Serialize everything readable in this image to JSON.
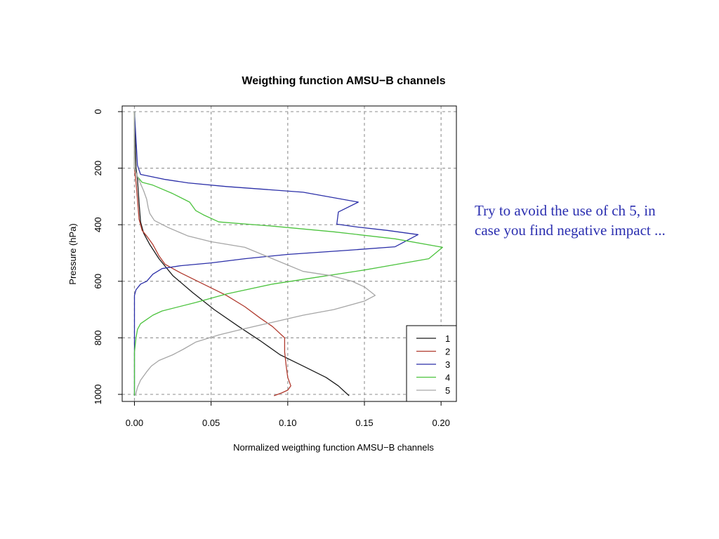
{
  "colors": {
    "note": "#2b2fb0"
  },
  "note_lines": [
    "Try to avoid the use of ch 5, in",
    "case you find negative impact ..."
  ],
  "chart_data": {
    "type": "line",
    "title": "Weigthing function AMSU−B channels",
    "xlabel": "Normalized weigthing function AMSU−B channels",
    "ylabel": "Pressure (hPa)",
    "xlim": [
      -0.008,
      0.21
    ],
    "ylim": [
      1025,
      -20
    ],
    "y_reversed": true,
    "xticks": [
      0.0,
      0.05,
      0.1,
      0.15,
      0.2
    ],
    "xtick_labels": [
      "0.00",
      "0.05",
      "0.10",
      "0.15",
      "0.20"
    ],
    "yticks": [
      0,
      200,
      400,
      600,
      800,
      1000
    ],
    "ytick_labels": [
      "0",
      "200",
      "400",
      "600",
      "800",
      "1000"
    ],
    "grid": true,
    "legend_position": "bottom-right",
    "series": [
      {
        "name": "1",
        "color": "#1a1a1a",
        "points": [
          [
            0.0,
            0
          ],
          [
            0.001,
            200
          ],
          [
            0.002,
            240
          ],
          [
            0.003,
            320
          ],
          [
            0.004,
            390
          ],
          [
            0.006,
            430
          ],
          [
            0.01,
            470
          ],
          [
            0.016,
            520
          ],
          [
            0.025,
            580
          ],
          [
            0.038,
            640
          ],
          [
            0.052,
            700
          ],
          [
            0.068,
            760
          ],
          [
            0.082,
            810
          ],
          [
            0.095,
            860
          ],
          [
            0.11,
            900
          ],
          [
            0.125,
            940
          ],
          [
            0.133,
            970
          ],
          [
            0.138,
            995
          ],
          [
            0.14,
            1005
          ]
        ]
      },
      {
        "name": "2",
        "color": "#b03a2e",
        "points": [
          [
            0.0,
            0
          ],
          [
            0.0,
            200
          ],
          [
            0.001,
            250
          ],
          [
            0.002,
            310
          ],
          [
            0.003,
            380
          ],
          [
            0.005,
            420
          ],
          [
            0.008,
            440
          ],
          [
            0.012,
            470
          ],
          [
            0.016,
            510
          ],
          [
            0.02,
            540
          ],
          [
            0.03,
            570
          ],
          [
            0.045,
            610
          ],
          [
            0.06,
            650
          ],
          [
            0.072,
            690
          ],
          [
            0.082,
            730
          ],
          [
            0.09,
            760
          ],
          [
            0.094,
            780
          ],
          [
            0.098,
            800
          ],
          [
            0.098,
            850
          ],
          [
            0.099,
            900
          ],
          [
            0.1,
            940
          ],
          [
            0.102,
            970
          ],
          [
            0.1,
            985
          ],
          [
            0.096,
            995
          ],
          [
            0.091,
            1005
          ]
        ]
      },
      {
        "name": "3",
        "color": "#2b2fa8",
        "points": [
          [
            0.0,
            0
          ],
          [
            0.001,
            100
          ],
          [
            0.002,
            190
          ],
          [
            0.004,
            222
          ],
          [
            0.02,
            240
          ],
          [
            0.035,
            252
          ],
          [
            0.06,
            265
          ],
          [
            0.085,
            275
          ],
          [
            0.11,
            285
          ],
          [
            0.146,
            320
          ],
          [
            0.133,
            355
          ],
          [
            0.132,
            398
          ],
          [
            0.145,
            408
          ],
          [
            0.165,
            420
          ],
          [
            0.185,
            435
          ],
          [
            0.17,
            478
          ],
          [
            0.14,
            490
          ],
          [
            0.1,
            505
          ],
          [
            0.072,
            520
          ],
          [
            0.05,
            535
          ],
          [
            0.03,
            545
          ],
          [
            0.018,
            555
          ],
          [
            0.012,
            575
          ],
          [
            0.008,
            600
          ],
          [
            0.004,
            610
          ],
          [
            0.001,
            630
          ],
          [
            0.0,
            650
          ],
          [
            0.0,
            800
          ],
          [
            0.0,
            1005
          ]
        ]
      },
      {
        "name": "4",
        "color": "#4cc33e",
        "points": [
          [
            0.0,
            0
          ],
          [
            0.0,
            200
          ],
          [
            0.002,
            230
          ],
          [
            0.005,
            250
          ],
          [
            0.012,
            260
          ],
          [
            0.025,
            290
          ],
          [
            0.036,
            320
          ],
          [
            0.04,
            350
          ],
          [
            0.045,
            365
          ],
          [
            0.055,
            390
          ],
          [
            0.09,
            405
          ],
          [
            0.13,
            425
          ],
          [
            0.17,
            450
          ],
          [
            0.201,
            480
          ],
          [
            0.192,
            520
          ],
          [
            0.15,
            560
          ],
          [
            0.12,
            585
          ],
          [
            0.09,
            610
          ],
          [
            0.06,
            645
          ],
          [
            0.04,
            675
          ],
          [
            0.018,
            705
          ],
          [
            0.012,
            720
          ],
          [
            0.008,
            735
          ],
          [
            0.004,
            750
          ],
          [
            0.002,
            770
          ],
          [
            0.001,
            800
          ],
          [
            0.0,
            850
          ],
          [
            0.0,
            1005
          ]
        ]
      },
      {
        "name": "5",
        "color": "#a6a6a6",
        "points": [
          [
            0.0,
            0
          ],
          [
            0.0,
            200
          ],
          [
            0.002,
            230
          ],
          [
            0.006,
            280
          ],
          [
            0.008,
            310
          ],
          [
            0.009,
            340
          ],
          [
            0.01,
            360
          ],
          [
            0.013,
            385
          ],
          [
            0.022,
            410
          ],
          [
            0.035,
            440
          ],
          [
            0.05,
            460
          ],
          [
            0.072,
            480
          ],
          [
            0.09,
            520
          ],
          [
            0.11,
            565
          ],
          [
            0.128,
            580
          ],
          [
            0.142,
            600
          ],
          [
            0.15,
            620
          ],
          [
            0.157,
            650
          ],
          [
            0.15,
            670
          ],
          [
            0.13,
            700
          ],
          [
            0.11,
            720
          ],
          [
            0.09,
            745
          ],
          [
            0.07,
            770
          ],
          [
            0.055,
            790
          ],
          [
            0.04,
            815
          ],
          [
            0.032,
            840
          ],
          [
            0.025,
            860
          ],
          [
            0.016,
            880
          ],
          [
            0.011,
            900
          ],
          [
            0.008,
            920
          ],
          [
            0.004,
            950
          ],
          [
            0.002,
            975
          ],
          [
            0.001,
            995
          ],
          [
            0.001,
            1005
          ]
        ]
      }
    ]
  }
}
